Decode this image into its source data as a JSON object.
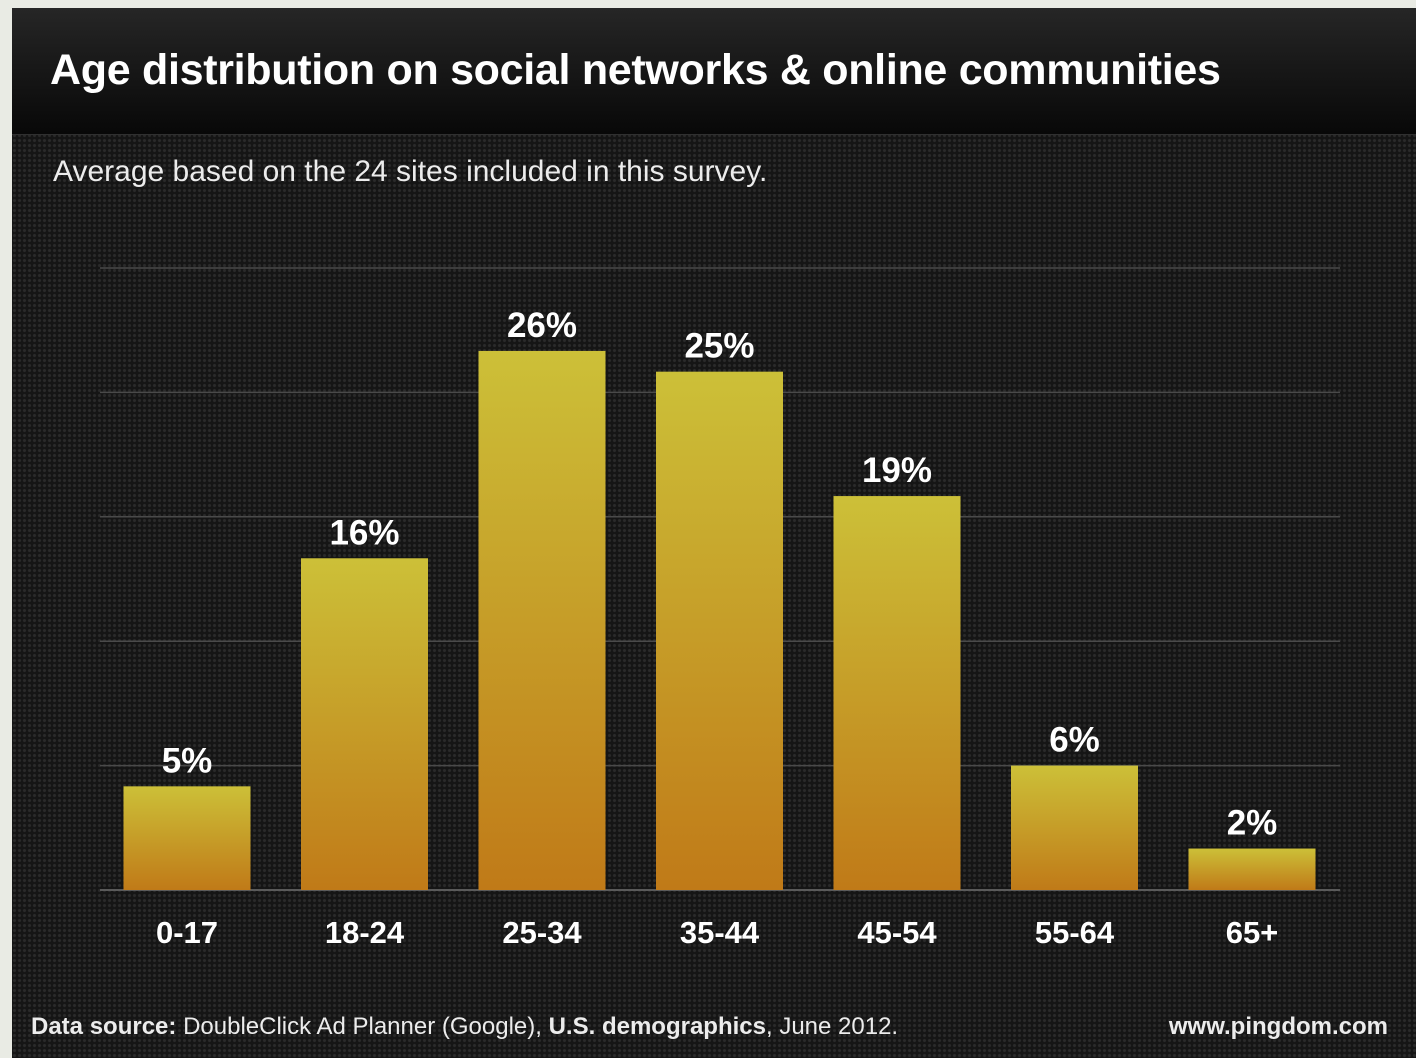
{
  "title": "Age distribution on social networks & online communities",
  "subtitle": "Average based on the 24 sites included in this survey.",
  "footer": {
    "source_label": "Data source:",
    "source_name": "DoubleClick Ad Planner (Google),",
    "demographics": "U.S. demographics",
    "date": ", June 2012.",
    "website": "www.pingdom.com"
  },
  "colors": {
    "bar_top": "#ccc038",
    "bar_bottom": "#c07a18",
    "background": "#151515",
    "gridline": "#4a4a4a",
    "text": "#ffffff"
  },
  "chart_data": {
    "type": "bar",
    "categories": [
      "0-17",
      "18-24",
      "25-34",
      "35-44",
      "45-54",
      "55-64",
      "65+"
    ],
    "values": [
      5,
      16,
      26,
      25,
      19,
      6,
      2
    ],
    "data_labels": [
      "5%",
      "16%",
      "26%",
      "25%",
      "19%",
      "6%",
      "2%"
    ],
    "ylim": [
      0,
      30
    ],
    "grid": true,
    "legend": "none"
  }
}
